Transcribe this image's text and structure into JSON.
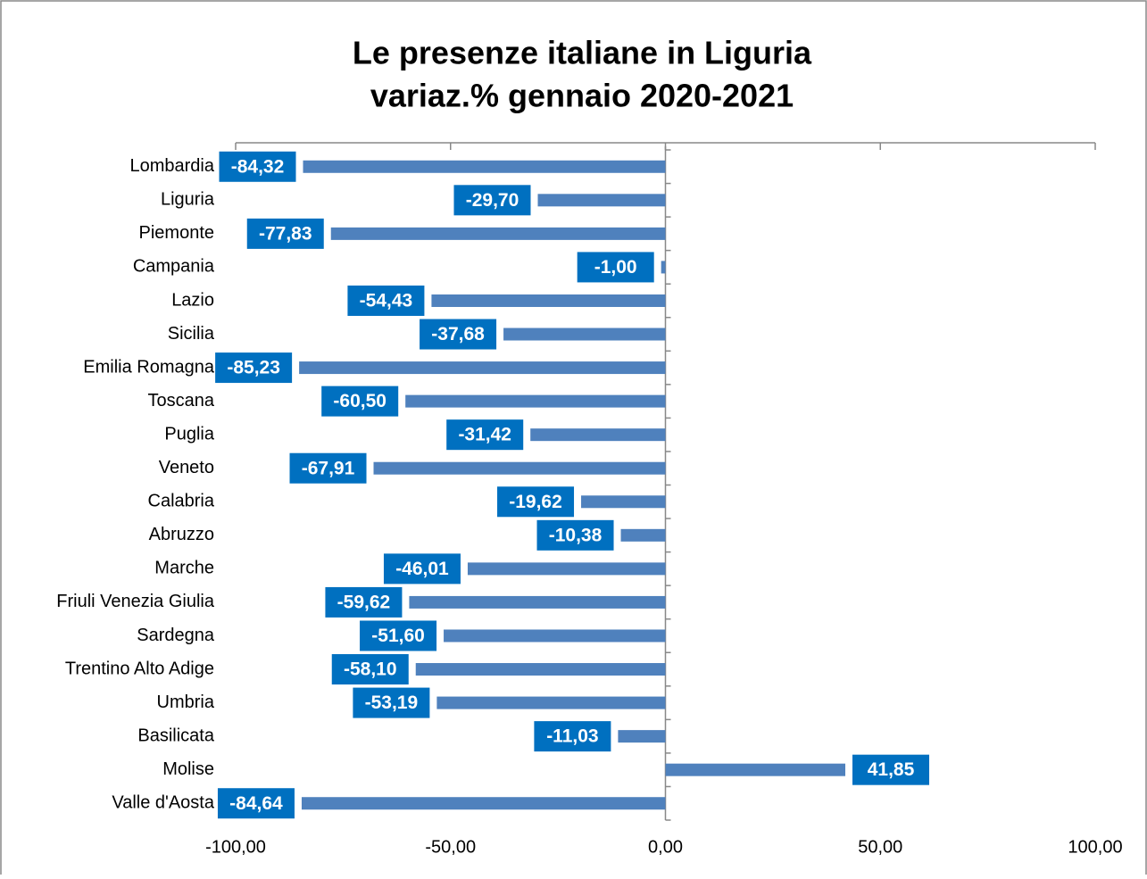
{
  "chart_data": {
    "type": "barh",
    "title": [
      "Le presenze italiane in Liguria",
      "variaz.% gennaio 2020-2021"
    ],
    "categories": [
      "Lombardia",
      "Liguria",
      "Piemonte",
      "Campania",
      "Lazio",
      "Sicilia",
      "Emilia Romagna",
      "Toscana",
      "Puglia",
      "Veneto",
      "Calabria",
      "Abruzzo",
      "Marche",
      "Friuli Venezia Giulia",
      "Sardegna",
      "Trentino Alto Adige",
      "Umbria",
      "Basilicata",
      "Molise",
      "Valle d'Aosta"
    ],
    "values": [
      -84.32,
      -29.7,
      -77.83,
      -1.0,
      -54.43,
      -37.68,
      -85.23,
      -60.5,
      -31.42,
      -67.91,
      -19.62,
      -10.38,
      -46.01,
      -59.62,
      -51.6,
      -58.1,
      -53.19,
      -11.03,
      41.85,
      -84.64
    ],
    "value_labels": [
      "-84,32",
      "-29,70",
      "-77,83",
      "-1,00",
      "-54,43",
      "-37,68",
      "-85,23",
      "-60,50",
      "-31,42",
      "-67,91",
      "-19,62",
      "-10,38",
      "-46,01",
      "-59,62",
      "-51,60",
      "-58,10",
      "-53,19",
      "-11,03",
      "41,85",
      "-84,64"
    ],
    "color": "#4f81bd",
    "label_color": "#0070c0",
    "xlim": [
      -100,
      100
    ],
    "xticks": [
      {
        "value": -100,
        "label": "-100,00"
      },
      {
        "value": -50,
        "label": "-50,00"
      },
      {
        "value": 0,
        "label": "0,00"
      },
      {
        "value": 50,
        "label": "50,00"
      },
      {
        "value": 100,
        "label": "100,00"
      }
    ]
  }
}
